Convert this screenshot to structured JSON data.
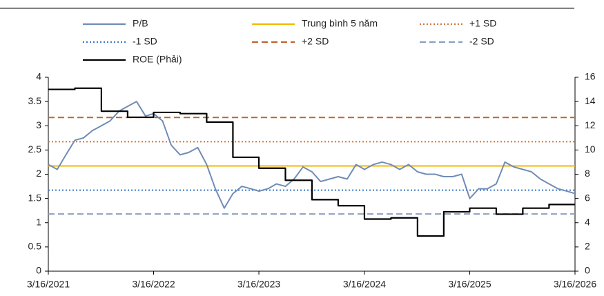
{
  "chart_data": {
    "type": "line",
    "xlim": [
      "3/16/2021",
      "3/16/2026"
    ],
    "xticks": [
      "3/16/2021",
      "3/16/2022",
      "3/16/2023",
      "3/16/2024",
      "3/16/2025",
      "3/16/2026"
    ],
    "ylim": [
      0,
      4
    ],
    "yticks": [
      0,
      0.5,
      1,
      1.5,
      2,
      2.5,
      3,
      3.5,
      4
    ],
    "y2lim": [
      0,
      16
    ],
    "y2ticks": [
      0,
      2,
      4,
      6,
      8,
      10,
      12,
      14,
      16
    ],
    "series": [
      {
        "name": "P/B",
        "color": "#6f8cb5",
        "style": "solid",
        "x": [
          "3/16/2021",
          "4/16/2021",
          "5/16/2021",
          "6/16/2021",
          "7/16/2021",
          "8/16/2021",
          "9/16/2021",
          "10/16/2021",
          "11/16/2021",
          "12/16/2021",
          "1/16/2022",
          "2/16/2022",
          "3/16/2022",
          "4/16/2022",
          "5/16/2022",
          "6/16/2022",
          "7/16/2022",
          "8/16/2022",
          "9/16/2022",
          "10/16/2022",
          "11/16/2022",
          "12/16/2022",
          "1/16/2023",
          "2/16/2023",
          "3/16/2023",
          "4/16/2023",
          "5/16/2023",
          "6/16/2023",
          "7/16/2023",
          "8/16/2023",
          "9/16/2023",
          "10/16/2023",
          "11/16/2023",
          "12/16/2023",
          "1/16/2024",
          "2/16/2024",
          "3/16/2024",
          "4/16/2024",
          "5/16/2024",
          "6/16/2024",
          "7/16/2024",
          "8/16/2024",
          "9/16/2024",
          "10/16/2024",
          "11/16/2024",
          "12/16/2024",
          "1/16/2025",
          "2/16/2025",
          "3/16/2025",
          "4/16/2025",
          "5/16/2025",
          "6/16/2025",
          "7/16/2025",
          "8/16/2025",
          "9/16/2025",
          "10/16/2025",
          "11/16/2025",
          "12/16/2025",
          "1/16/2026",
          "2/16/2026",
          "3/16/2026"
        ],
        "values": [
          2.2,
          2.1,
          2.4,
          2.7,
          2.75,
          2.9,
          3.0,
          3.1,
          3.3,
          3.4,
          3.5,
          3.2,
          3.25,
          3.1,
          2.6,
          2.4,
          2.45,
          2.55,
          2.2,
          1.7,
          1.3,
          1.6,
          1.75,
          1.7,
          1.65,
          1.7,
          1.8,
          1.75,
          1.9,
          2.15,
          2.05,
          1.85,
          1.9,
          1.95,
          1.9,
          2.2,
          2.1,
          2.2,
          2.25,
          2.2,
          2.1,
          2.2,
          2.05,
          2.0,
          2.0,
          1.95,
          1.95,
          2.0,
          1.5,
          1.7,
          1.7,
          1.8,
          2.25,
          2.15,
          2.1,
          2.05,
          1.9,
          1.8,
          1.7,
          1.65,
          1.6
        ]
      },
      {
        "name": "Trung bình 5 năm",
        "color": "#f5b800",
        "style": "solid",
        "value": 2.17
      },
      {
        "name": "+1 SD",
        "color": "#d0753a",
        "style": "dotted",
        "value": 2.67
      },
      {
        "name": "-1 SD",
        "color": "#3a7bc8",
        "style": "dotted",
        "value": 1.67
      },
      {
        "name": "+2 SD",
        "color": "#c0652a",
        "style": "dashed",
        "value": 3.17
      },
      {
        "name": "-2 SD",
        "color": "#8a9ec0",
        "style": "dashed",
        "value": 1.18
      },
      {
        "name": "ROE (Phải)",
        "color": "#000000",
        "style": "step",
        "axis": "y2",
        "x": [
          "3/16/2021",
          "6/16/2021",
          "9/16/2021",
          "12/16/2021",
          "3/16/2022",
          "6/16/2022",
          "9/16/2022",
          "12/16/2022",
          "3/16/2023",
          "6/16/2023",
          "9/16/2023",
          "12/16/2023",
          "3/16/2024",
          "6/16/2024",
          "9/16/2024",
          "12/16/2024",
          "3/16/2025",
          "6/16/2025",
          "9/16/2025",
          "12/16/2025",
          "3/16/2026"
        ],
        "values": [
          15.0,
          15.1,
          13.2,
          12.7,
          13.1,
          13.0,
          12.3,
          9.4,
          8.5,
          7.5,
          5.9,
          5.4,
          4.3,
          4.4,
          2.9,
          4.9,
          5.2,
          4.7,
          5.2,
          5.5,
          5.5
        ]
      }
    ]
  }
}
